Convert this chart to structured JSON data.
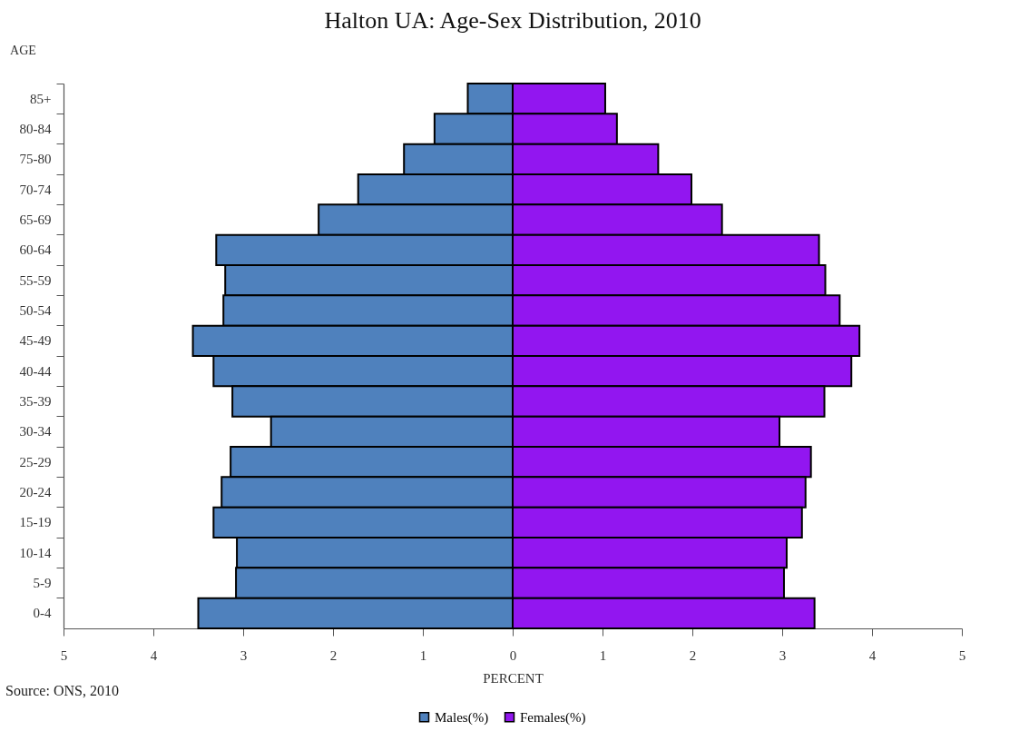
{
  "chart_data": {
    "type": "bar",
    "orientation": "horizontal",
    "title": "Halton UA:  Age-Sex Distribution, 2010",
    "xlabel": "PERCENT",
    "ylabel": "AGE",
    "categories": [
      "85+",
      "80-84",
      "75-80",
      "70-74",
      "65-69",
      "60-64",
      "55-59",
      "50-54",
      "45-49",
      "40-44",
      "35-39",
      "30-34",
      "25-29",
      "20-24",
      "15-19",
      "10-14",
      "5-9",
      "0-4"
    ],
    "series": [
      {
        "name": "Males(%)",
        "color": "#4f81bd",
        "values": [
          -0.5,
          -0.87,
          -1.21,
          -1.72,
          -2.16,
          -3.3,
          -3.2,
          -3.22,
          -3.56,
          -3.33,
          -3.12,
          -2.69,
          -3.14,
          -3.24,
          -3.33,
          -3.07,
          -3.08,
          -3.5
        ]
      },
      {
        "name": "Females(%)",
        "color": "#9216f0",
        "values": [
          1.03,
          1.16,
          1.62,
          1.99,
          2.33,
          3.41,
          3.48,
          3.64,
          3.86,
          3.77,
          3.47,
          2.97,
          3.32,
          3.26,
          3.22,
          3.05,
          3.02,
          3.36
        ]
      }
    ],
    "xlim": [
      -5,
      5
    ],
    "xticks": [
      {
        "value": -5,
        "label": "5"
      },
      {
        "value": -4,
        "label": "4"
      },
      {
        "value": -3,
        "label": "3"
      },
      {
        "value": -2,
        "label": "2"
      },
      {
        "value": -1,
        "label": "1"
      },
      0,
      1,
      2,
      3,
      4,
      5
    ],
    "legend": "bottom",
    "stacked": true,
    "annotations": [
      "Source:  ONS, 2010"
    ]
  }
}
